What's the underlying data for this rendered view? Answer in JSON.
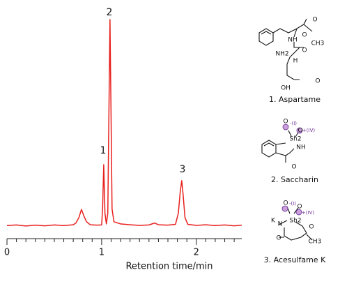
{
  "chart_data": {
    "type": "line",
    "xlabel": "Retention time/min",
    "x": [
      0,
      0.1,
      0.2,
      0.3,
      0.4,
      0.5,
      0.6,
      0.7,
      0.73,
      0.76,
      0.787,
      0.81,
      0.84,
      0.88,
      0.95,
      1.0,
      1.01,
      1.022,
      1.035,
      1.05,
      1.065,
      1.078,
      1.088,
      1.098,
      1.11,
      1.13,
      1.2,
      1.3,
      1.4,
      1.5,
      1.56,
      1.6,
      1.7,
      1.78,
      1.81,
      1.83,
      1.846,
      1.86,
      1.88,
      1.91,
      2.0,
      2.1,
      2.2,
      2.3,
      2.4,
      2.48
    ],
    "series": [
      {
        "color": "#e8201e",
        "values": [
          2.2,
          2.5,
          2.0,
          2.4,
          2.1,
          2.5,
          2.2,
          2.6,
          3.5,
          6,
          9.8,
          7,
          4,
          2.6,
          2.4,
          2.5,
          10,
          30.8,
          8,
          3,
          8,
          60,
          99,
          60,
          10,
          4,
          3,
          2.6,
          2.3,
          2.5,
          3.4,
          2.6,
          2.4,
          2.8,
          8,
          18,
          23.3,
          17,
          6,
          2.8,
          2.3,
          2.6,
          2.2,
          2.5,
          2.1,
          2.4
        ]
      }
    ],
    "xlim": [
      0,
      2.48
    ],
    "ylim": [
      0,
      100
    ],
    "xticks": [
      0,
      1,
      2
    ],
    "xminor_ticks": [
      0.1,
      0.2,
      0.3,
      0.4,
      0.5,
      0.6,
      0.7,
      0.8,
      0.9,
      1.1,
      1.2,
      1.3,
      1.4,
      1.5,
      1.6,
      1.7,
      1.8,
      1.9,
      2.1,
      2.2,
      2.3,
      2.4
    ],
    "annotations": [
      "1",
      "2",
      "3"
    ]
  },
  "structures": [
    {
      "name": "1. Aspartame",
      "atoms": [
        "O",
        "O",
        "CH3",
        "NH",
        "O",
        "NH2",
        "H",
        "O",
        "OH"
      ]
    },
    {
      "name": "2. Saccharin",
      "atoms": [
        "O",
        "-(I)",
        "O",
        "+(IV)",
        "Sh2",
        "NH",
        "O"
      ]
    },
    {
      "name": "3. Acesulfame K",
      "atoms": [
        "O",
        "-(I)",
        "O",
        "+(IV)",
        "K",
        "N",
        "Sh2",
        "O",
        "O",
        "CH3"
      ]
    }
  ]
}
